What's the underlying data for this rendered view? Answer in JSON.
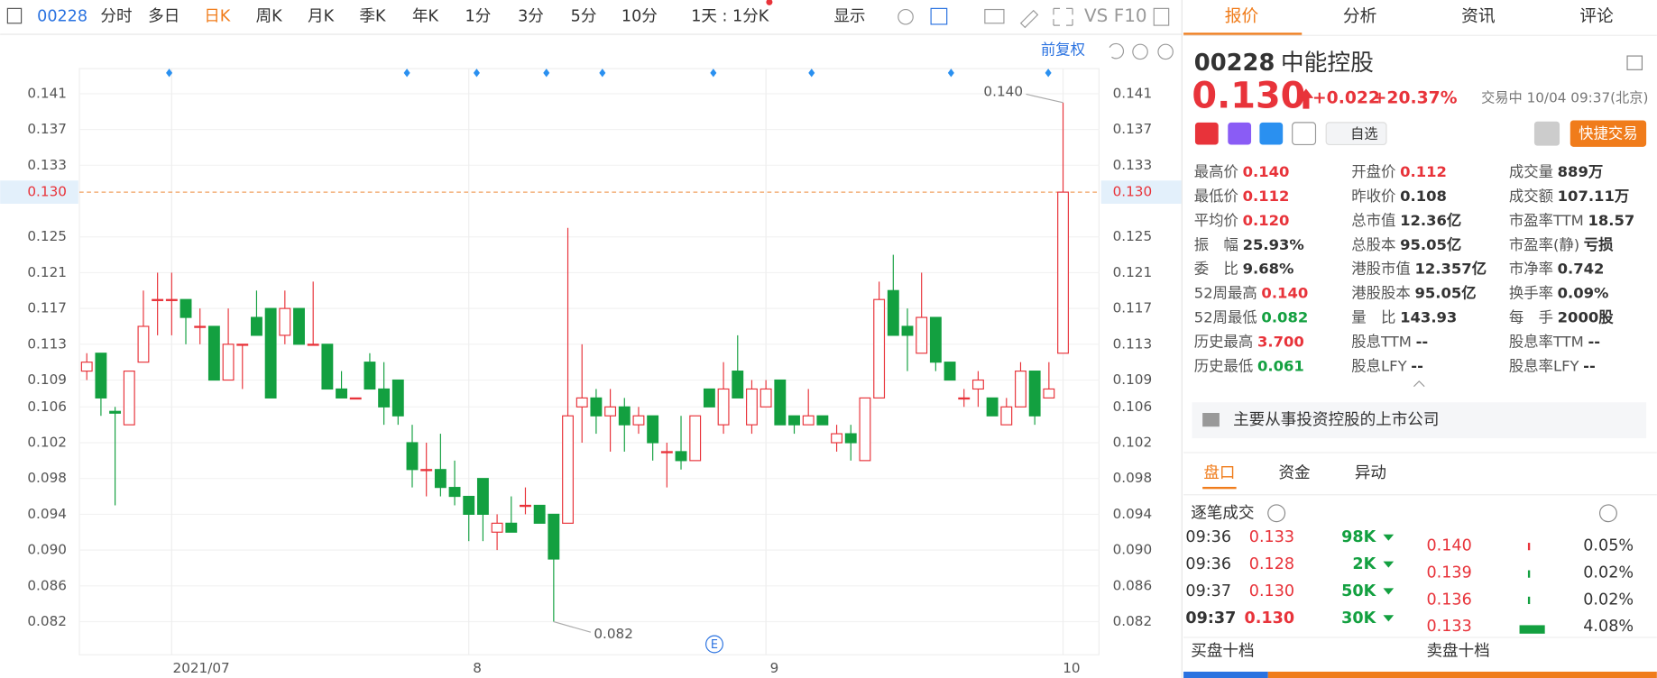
{
  "toolbar": {
    "code": "00228",
    "tabs": [
      "分时",
      "多日",
      "日K",
      "周K",
      "月K",
      "季K",
      "年K",
      "1分",
      "3分",
      "5分",
      "10分"
    ],
    "active_tab": "日K",
    "period": "1天 : 1分K",
    "display": "显示",
    "vs": "VS",
    "f10": "F10",
    "adjust": "前复权"
  },
  "chart_data": {
    "type": "candlestick",
    "categories": [
      null,
      null,
      null,
      null,
      null,
      null,
      "2021/07",
      null,
      null,
      null,
      null,
      null,
      null,
      null,
      null,
      null,
      null,
      null,
      null,
      null,
      null,
      null,
      null,
      null,
      null,
      null,
      null,
      "8",
      null,
      null,
      null,
      null,
      null,
      null,
      null,
      null,
      null,
      null,
      null,
      null,
      null,
      null,
      null,
      null,
      null,
      null,
      null,
      null,
      "9",
      null,
      null,
      null,
      null,
      null,
      null,
      null,
      null,
      null,
      null,
      null,
      null,
      null,
      null,
      null,
      null,
      null,
      null,
      null,
      null,
      "10"
    ],
    "open": [
      0.11,
      0.112,
      0.1055,
      0.104,
      0.111,
      0.118,
      0.118,
      0.118,
      0.115,
      0.115,
      0.109,
      0.113,
      0.116,
      0.117,
      0.114,
      0.117,
      0.113,
      0.113,
      0.108,
      0.107,
      0.111,
      0.108,
      0.109,
      0.102,
      0.099,
      0.099,
      0.097,
      0.096,
      0.098,
      0.092,
      0.093,
      0.095,
      0.095,
      0.094,
      0.093,
      0.106,
      0.107,
      0.105,
      0.106,
      0.104,
      0.105,
      0.101,
      0.101,
      0.1,
      0.108,
      0.104,
      0.11,
      0.104,
      0.106,
      0.109,
      0.105,
      0.104,
      0.105,
      0.102,
      0.103,
      0.1,
      0.107,
      0.119,
      0.115,
      0.112,
      0.116,
      0.111,
      0.107,
      0.108,
      0.107,
      0.104,
      0.106,
      0.11,
      0.107,
      0.112
    ],
    "high": [
      0.112,
      0.112,
      0.106,
      0.11,
      0.119,
      0.121,
      0.121,
      0.118,
      0.117,
      0.115,
      0.117,
      0.113,
      0.119,
      0.117,
      0.119,
      0.117,
      0.12,
      0.113,
      0.11,
      0.107,
      0.112,
      0.111,
      0.109,
      0.104,
      0.102,
      0.103,
      0.1,
      0.096,
      0.098,
      0.094,
      0.096,
      0.097,
      0.095,
      0.094,
      0.126,
      0.113,
      0.108,
      0.108,
      0.107,
      0.106,
      0.105,
      0.102,
      0.105,
      0.105,
      0.108,
      0.111,
      0.114,
      0.109,
      0.109,
      0.109,
      0.105,
      0.108,
      0.105,
      0.104,
      0.104,
      0.107,
      0.12,
      0.123,
      0.117,
      0.121,
      0.116,
      0.111,
      0.108,
      0.11,
      0.107,
      0.107,
      0.111,
      0.11,
      0.111,
      0.14
    ],
    "low": [
      0.109,
      0.105,
      0.095,
      0.104,
      0.111,
      0.114,
      0.114,
      0.113,
      0.113,
      0.109,
      0.109,
      0.108,
      0.114,
      0.107,
      0.113,
      0.113,
      0.113,
      0.108,
      0.107,
      0.107,
      0.108,
      0.104,
      0.104,
      0.097,
      0.096,
      0.096,
      0.095,
      0.091,
      0.091,
      0.09,
      0.092,
      0.094,
      0.093,
      0.082,
      0.093,
      0.102,
      0.103,
      0.101,
      0.101,
      0.103,
      0.1,
      0.097,
      0.099,
      0.1,
      0.106,
      0.103,
      0.107,
      0.103,
      0.106,
      0.104,
      0.103,
      0.104,
      0.104,
      0.101,
      0.1,
      0.1,
      0.107,
      0.114,
      0.11,
      0.112,
      0.11,
      0.109,
      0.106,
      0.106,
      0.105,
      0.104,
      0.106,
      0.104,
      0.107,
      0.112
    ],
    "close": [
      0.111,
      0.107,
      0.1053,
      0.11,
      0.115,
      0.118,
      0.118,
      0.116,
      0.115,
      0.109,
      0.113,
      0.113,
      0.114,
      0.107,
      0.117,
      0.113,
      0.113,
      0.108,
      0.107,
      0.107,
      0.108,
      0.106,
      0.105,
      0.099,
      0.099,
      0.097,
      0.096,
      0.094,
      0.094,
      0.093,
      0.092,
      0.095,
      0.093,
      0.089,
      0.105,
      0.107,
      0.105,
      0.106,
      0.104,
      0.105,
      0.102,
      0.101,
      0.1,
      0.105,
      0.106,
      0.108,
      0.107,
      0.108,
      0.108,
      0.104,
      0.104,
      0.105,
      0.104,
      0.103,
      0.102,
      0.107,
      0.118,
      0.114,
      0.114,
      0.116,
      0.111,
      0.109,
      0.107,
      0.109,
      0.105,
      0.106,
      0.11,
      0.105,
      0.108,
      0.13
    ],
    "up_color": "#e8333a",
    "down_color": "#13a040",
    "ylim": [
      0.0783,
      0.1438
    ],
    "yticks": [
      0.141,
      0.137,
      0.133,
      0.125,
      0.121,
      0.117,
      0.113,
      0.109,
      0.106,
      0.102,
      0.098,
      0.094,
      {
        "value": 0.09,
        "label": "0.090"
      },
      0.086,
      0.082
    ],
    "current_price": {
      "value": 0.13,
      "label": "0.130"
    },
    "high_label": "0.140",
    "low_label": "0.082",
    "grid": true
  },
  "quote": {
    "tabs": [
      "报价",
      "分析",
      "资讯",
      "评论"
    ],
    "code": "00228",
    "name": "中能控股",
    "price": "0.130",
    "change": "+0.022",
    "change_pct": "+20.37%",
    "status": "交易中 10/04 09:37(北京)",
    "watch": "自选",
    "trade": "快捷交易",
    "stats": [
      [
        {
          "label": "最高价",
          "value": "0.140",
          "tone": "up"
        },
        {
          "label": "开盘价",
          "value": "0.112",
          "tone": "up"
        },
        {
          "label": "成交量",
          "value": "889万",
          "tone": "flat"
        }
      ],
      [
        {
          "label": "最低价",
          "value": "0.112",
          "tone": "up"
        },
        {
          "label": "昨收价",
          "value": "0.108",
          "tone": "flat"
        },
        {
          "label": "成交额",
          "value": "107.11万",
          "tone": "flat"
        }
      ],
      [
        {
          "label": "平均价",
          "value": "0.120",
          "tone": "up"
        },
        {
          "label": "总市值",
          "value": "12.36亿",
          "tone": "flat"
        },
        {
          "label": "市盈率TTM",
          "value": "18.57",
          "tone": "flat"
        }
      ],
      [
        {
          "label": "振　幅",
          "value": "25.93%",
          "tone": "flat"
        },
        {
          "label": "总股本",
          "value": "95.05亿",
          "tone": "flat"
        },
        {
          "label": "市盈率(静)",
          "value": "亏损",
          "tone": "flat"
        }
      ],
      [
        {
          "label": "委　比",
          "value": "9.68%",
          "tone": "flat"
        },
        {
          "label": "港股市值",
          "value": "12.357亿",
          "tone": "flat"
        },
        {
          "label": "市净率",
          "value": "0.742",
          "tone": "flat"
        }
      ],
      [
        {
          "label": "52周最高",
          "value": "0.140",
          "tone": "up"
        },
        {
          "label": "港股股本",
          "value": "95.05亿",
          "tone": "flat"
        },
        {
          "label": "换手率",
          "value": "0.09%",
          "tone": "flat"
        }
      ],
      [
        {
          "label": "52周最低",
          "value": "0.082",
          "tone": "down"
        },
        {
          "label": "量　比",
          "value": "143.93",
          "tone": "flat"
        },
        {
          "label": "每　手",
          "value": "2000股",
          "tone": "flat"
        }
      ],
      [
        {
          "label": "历史最高",
          "value": "3.700",
          "tone": "up"
        },
        {
          "label": "股息TTM",
          "value": "--",
          "tone": "flat"
        },
        {
          "label": "股息率TTM",
          "value": "--",
          "tone": "flat"
        }
      ],
      [
        {
          "label": "历史最低",
          "value": "0.061",
          "tone": "down"
        },
        {
          "label": "股息LFY",
          "value": "--",
          "tone": "flat"
        },
        {
          "label": "股息率LFY",
          "value": "--",
          "tone": "flat"
        }
      ]
    ],
    "description": "主要从事投资控股的上市公司",
    "book_tabs": [
      "盘口",
      "资金",
      "异动"
    ],
    "ticks_title": "逐笔成交",
    "trades": [
      [
        "09:36",
        "0.133",
        "98K"
      ],
      [
        "09:36",
        "0.128",
        "2K"
      ],
      [
        "09:37",
        "0.130",
        "50K"
      ],
      [
        "09:37",
        "0.130",
        "30K"
      ]
    ],
    "levels": [
      [
        "0.140",
        "0.05%"
      ],
      [
        "0.139",
        "0.02%"
      ],
      [
        "0.136",
        "0.02%"
      ],
      [
        "0.133",
        "4.08%"
      ]
    ],
    "bid_title": "买盘十档",
    "ask_title": "卖盘十档"
  }
}
